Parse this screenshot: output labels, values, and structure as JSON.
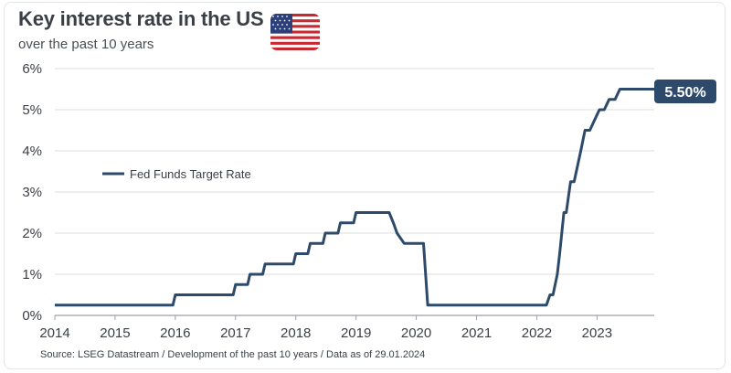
{
  "header": {
    "title": "Key interest rate in the US",
    "subtitle": "over the past 10 years"
  },
  "footer": {
    "source": "Source: LSEG Datastream / Development of the past 10 years / Data as of 29.01.2024"
  },
  "flag_icon": "us-flag-icon",
  "colors": {
    "line": "#2d4a6b",
    "callout": "#2d4a6b",
    "grid": "#d9dde2",
    "text": "#3a3f45"
  },
  "chart_data": {
    "type": "line",
    "title": "Key interest rate in the US",
    "subtitle": "over the past 10 years",
    "xlabel": "",
    "ylabel": "",
    "xlim": [
      2014.0,
      2023.95
    ],
    "ylim": [
      0,
      6
    ],
    "x_ticks": [
      "2014",
      "2015",
      "2016",
      "2017",
      "2018",
      "2019",
      "2020",
      "2021",
      "2022",
      "2023"
    ],
    "y_ticks": [
      "0%",
      "1%",
      "2%",
      "3%",
      "4%",
      "5%",
      "6%"
    ],
    "grid": "horizontal",
    "legend": {
      "position": "left-middle",
      "entries": [
        "Fed Funds Target Rate"
      ]
    },
    "end_label": "5.50%",
    "series": [
      {
        "name": "Fed Funds Target Rate",
        "x": [
          2014.0,
          2015.96,
          2016.0,
          2016.96,
          2017.0,
          2017.2,
          2017.24,
          2017.45,
          2017.49,
          2017.96,
          2018.0,
          2018.2,
          2018.24,
          2018.45,
          2018.49,
          2018.7,
          2018.74,
          2018.96,
          2019.0,
          2019.55,
          2019.62,
          2019.68,
          2019.8,
          2020.12,
          2020.19,
          2020.22,
          2022.16,
          2022.22,
          2022.27,
          2022.34,
          2022.38,
          2022.45,
          2022.49,
          2022.56,
          2022.62,
          2022.73,
          2022.8,
          2022.88,
          2022.96,
          2023.04,
          2023.12,
          2023.2,
          2023.3,
          2023.38,
          2023.46,
          2023.54,
          2023.58,
          2023.95
        ],
        "y": [
          0.25,
          0.25,
          0.5,
          0.5,
          0.75,
          0.75,
          1.0,
          1.0,
          1.25,
          1.25,
          1.5,
          1.5,
          1.75,
          1.75,
          2.0,
          2.0,
          2.25,
          2.25,
          2.5,
          2.5,
          2.25,
          2.0,
          1.75,
          1.75,
          0.25,
          0.25,
          0.25,
          0.5,
          0.5,
          1.0,
          1.5,
          2.5,
          2.5,
          3.25,
          3.25,
          4.0,
          4.5,
          4.5,
          4.75,
          5.0,
          5.0,
          5.25,
          5.25,
          5.5,
          5.5,
          5.5,
          5.5,
          5.5
        ]
      }
    ]
  }
}
